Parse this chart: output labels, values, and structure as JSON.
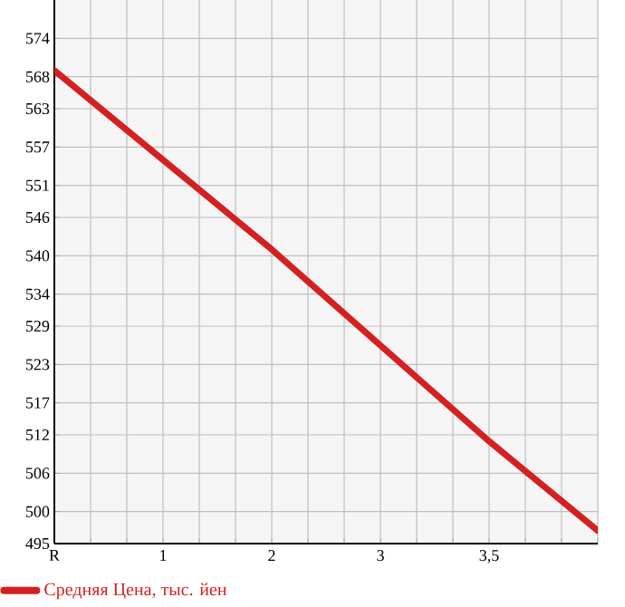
{
  "chart_data": {
    "type": "line",
    "categories": [
      "R",
      "1",
      "2",
      "3",
      "3,5",
      null
    ],
    "series": [
      {
        "name": "Средняя Цена, тыс. йен",
        "color": "#d42020",
        "values": [
          569,
          555,
          541,
          526,
          511,
          497
        ]
      }
    ],
    "ylim": [
      495,
      580
    ],
    "yticks": [
      495,
      500,
      506,
      512,
      517,
      523,
      529,
      534,
      540,
      546,
      551,
      557,
      563,
      568,
      574
    ],
    "grid": true,
    "legend": "bottom",
    "marker": "none",
    "line_style": "solid"
  }
}
